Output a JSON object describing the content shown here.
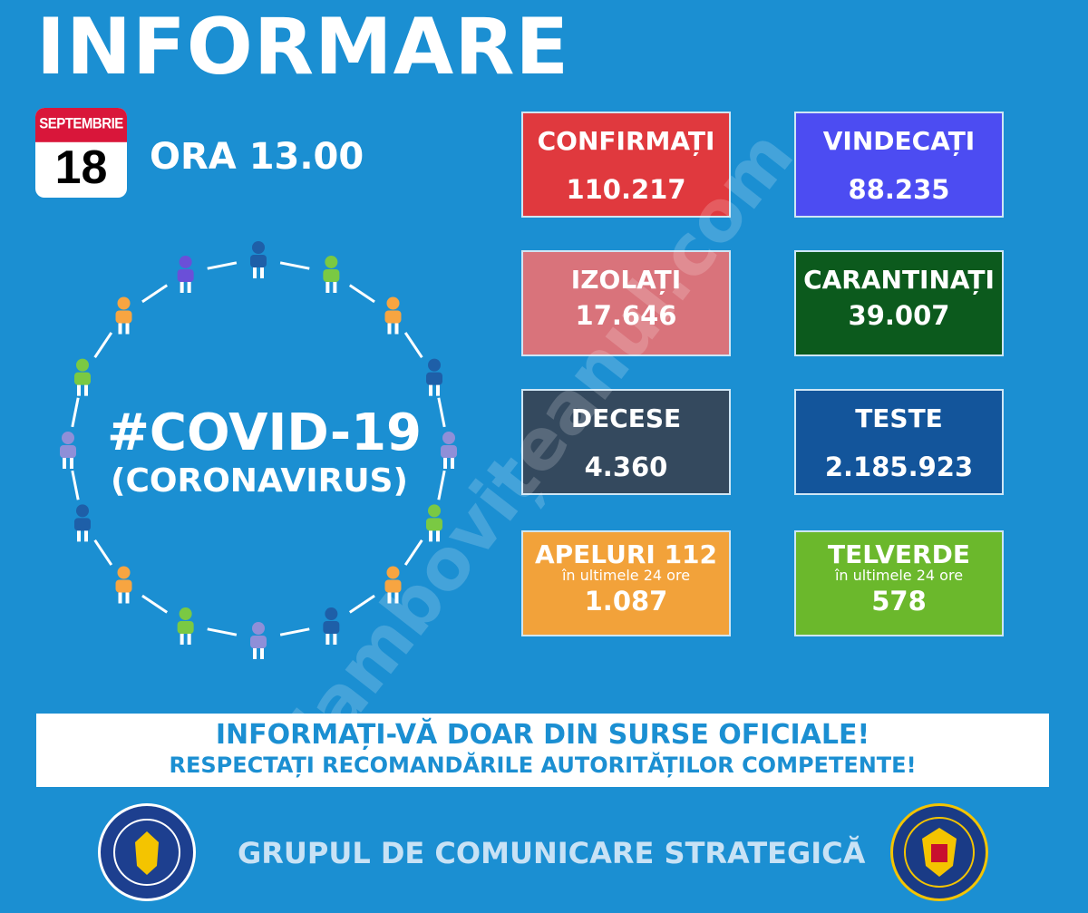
{
  "header": {
    "title": "INFORMARE",
    "month": "SEPTEMBRIE",
    "day": "18",
    "time": "ORA 13.00"
  },
  "center": {
    "hashtag": "#COVID-19",
    "subtitle": "(CORONAVIRUS)",
    "figure_colors": [
      "#1e5fa8",
      "#7ac943",
      "#f7a541",
      "#1e5fa8",
      "#8f8fd8",
      "#7ac943",
      "#f7a541",
      "#1e5fa8",
      "#8f8fd8",
      "#7ac943",
      "#f7a541",
      "#1e5fa8",
      "#8f8fd8",
      "#7ac943",
      "#f7a541",
      "#6b4fd8"
    ]
  },
  "stats": [
    {
      "label": "CONFIRMAȚI",
      "value": "110.217",
      "color": "#e0393e"
    },
    {
      "label": "VINDECAȚI",
      "value": "88.235",
      "color": "#4c4cf2"
    },
    {
      "label": "IZOLAȚI",
      "value": "17.646",
      "color": "#d9737b"
    },
    {
      "label": "CARANTINAȚI",
      "value": "39.007",
      "color": "#0c5a1d"
    },
    {
      "label": "DECESE",
      "value": "4.360",
      "color": "#34495e"
    },
    {
      "label": "TESTE",
      "value": "2.185.923",
      "color": "#13559b"
    },
    {
      "label": "APELURI 112",
      "sub": "în ultimele 24 ore",
      "value": "1.087",
      "color": "#f2a23a"
    },
    {
      "label": "TELVERDE",
      "sub": "în ultimele 24 ore",
      "value": "578",
      "color": "#6bb82c"
    }
  ],
  "banner": {
    "line1": "INFORMAȚI-VĂ DOAR DIN SURSE OFICIALE!",
    "line2": "RESPECTAȚI RECOMANDĂRILE AUTORITĂȚILOR COMPETENTE!"
  },
  "footer": {
    "text": "GRUPUL DE COMUNICARE STRATEGICĂ",
    "logo_left": "GUVERNUL ROMÂNIEI",
    "logo_right": "DEPARTAMENTUL PENTRU SITUAȚII DE URGENȚĂ M.A.I."
  },
  "watermark": "dambovițeanul.com"
}
